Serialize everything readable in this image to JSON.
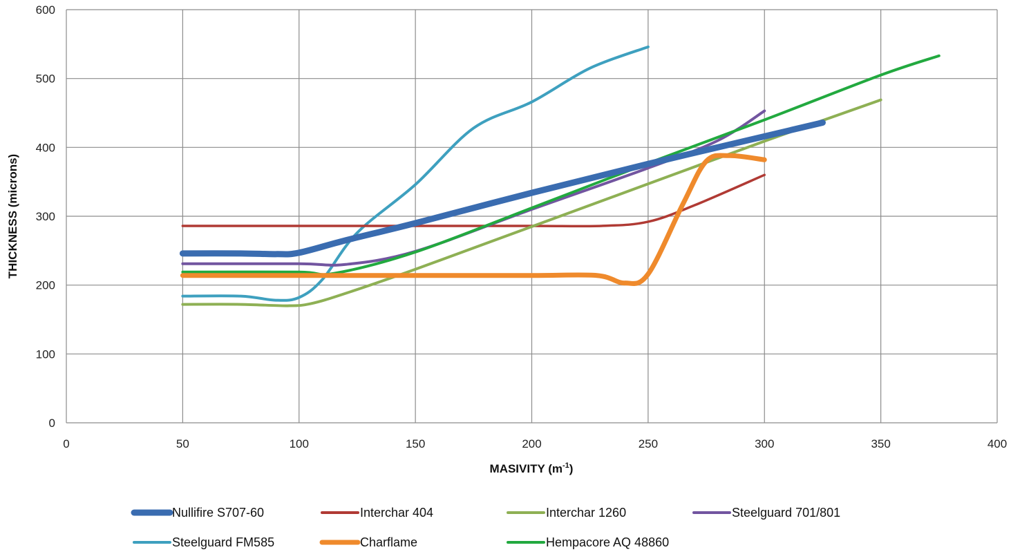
{
  "chart_data": {
    "type": "line",
    "title": "",
    "xlabel": "MASIVITY (m",
    "xlabel_sup": "-1",
    "xlabel_suffix": ")",
    "ylabel": "THICKNESS (microns)",
    "xlim": [
      0,
      400
    ],
    "ylim": [
      0,
      600
    ],
    "xticks": [
      0,
      50,
      100,
      150,
      200,
      250,
      300,
      350,
      400
    ],
    "yticks": [
      0,
      100,
      200,
      300,
      400,
      500,
      600
    ],
    "grid": true,
    "legend_position": "bottom",
    "series": [
      {
        "name": "Nullifire S707-60",
        "color": "#3a6cb0",
        "width": 9,
        "x": [
          50,
          75,
          90,
          100,
          120,
          150,
          200,
          250,
          300,
          325
        ],
        "y": [
          246,
          246,
          245,
          247,
          265,
          290,
          334,
          376,
          416,
          436
        ]
      },
      {
        "name": "Interchar 404",
        "color": "#b03a34",
        "width": 3.5,
        "x": [
          50,
          100,
          150,
          200,
          230,
          250,
          270,
          300
        ],
        "y": [
          286,
          286,
          286,
          286,
          286,
          292,
          316,
          360
        ]
      },
      {
        "name": "Interchar 1260",
        "color": "#8eb054",
        "width": 4,
        "x": [
          50,
          75,
          95,
          105,
          120,
          150,
          200,
          250,
          300,
          350
        ],
        "y": [
          172,
          172,
          170,
          173,
          188,
          223,
          285,
          347,
          409,
          469
        ]
      },
      {
        "name": "Steelguard 701/801",
        "color": "#7255a0",
        "width": 4,
        "x": [
          50,
          100,
          120,
          150,
          200,
          250,
          280,
          300
        ],
        "y": [
          231,
          231,
          230,
          249,
          310,
          370,
          410,
          453
        ]
      },
      {
        "name": "Steelguard FM585",
        "color": "#3ea0bf",
        "width": 4,
        "x": [
          50,
          75,
          90,
          100,
          110,
          125,
          150,
          175,
          200,
          225,
          250
        ],
        "y": [
          184,
          184,
          178,
          182,
          208,
          276,
          346,
          428,
          466,
          515,
          546
        ]
      },
      {
        "name": "Charflame",
        "color": "#ef8a2c",
        "width": 7,
        "x": [
          50,
          100,
          150,
          200,
          228,
          240,
          250,
          265,
          275,
          285,
          300
        ],
        "y": [
          214,
          214,
          214,
          214,
          214,
          203,
          216,
          318,
          380,
          388,
          382
        ]
      },
      {
        "name": "Hempacore AQ 48860",
        "color": "#22a93f",
        "width": 4,
        "x": [
          50,
          100,
          115,
          150,
          200,
          250,
          300,
          350,
          375
        ],
        "y": [
          219,
          219,
          217,
          248,
          312,
          377,
          440,
          505,
          533
        ]
      }
    ]
  }
}
